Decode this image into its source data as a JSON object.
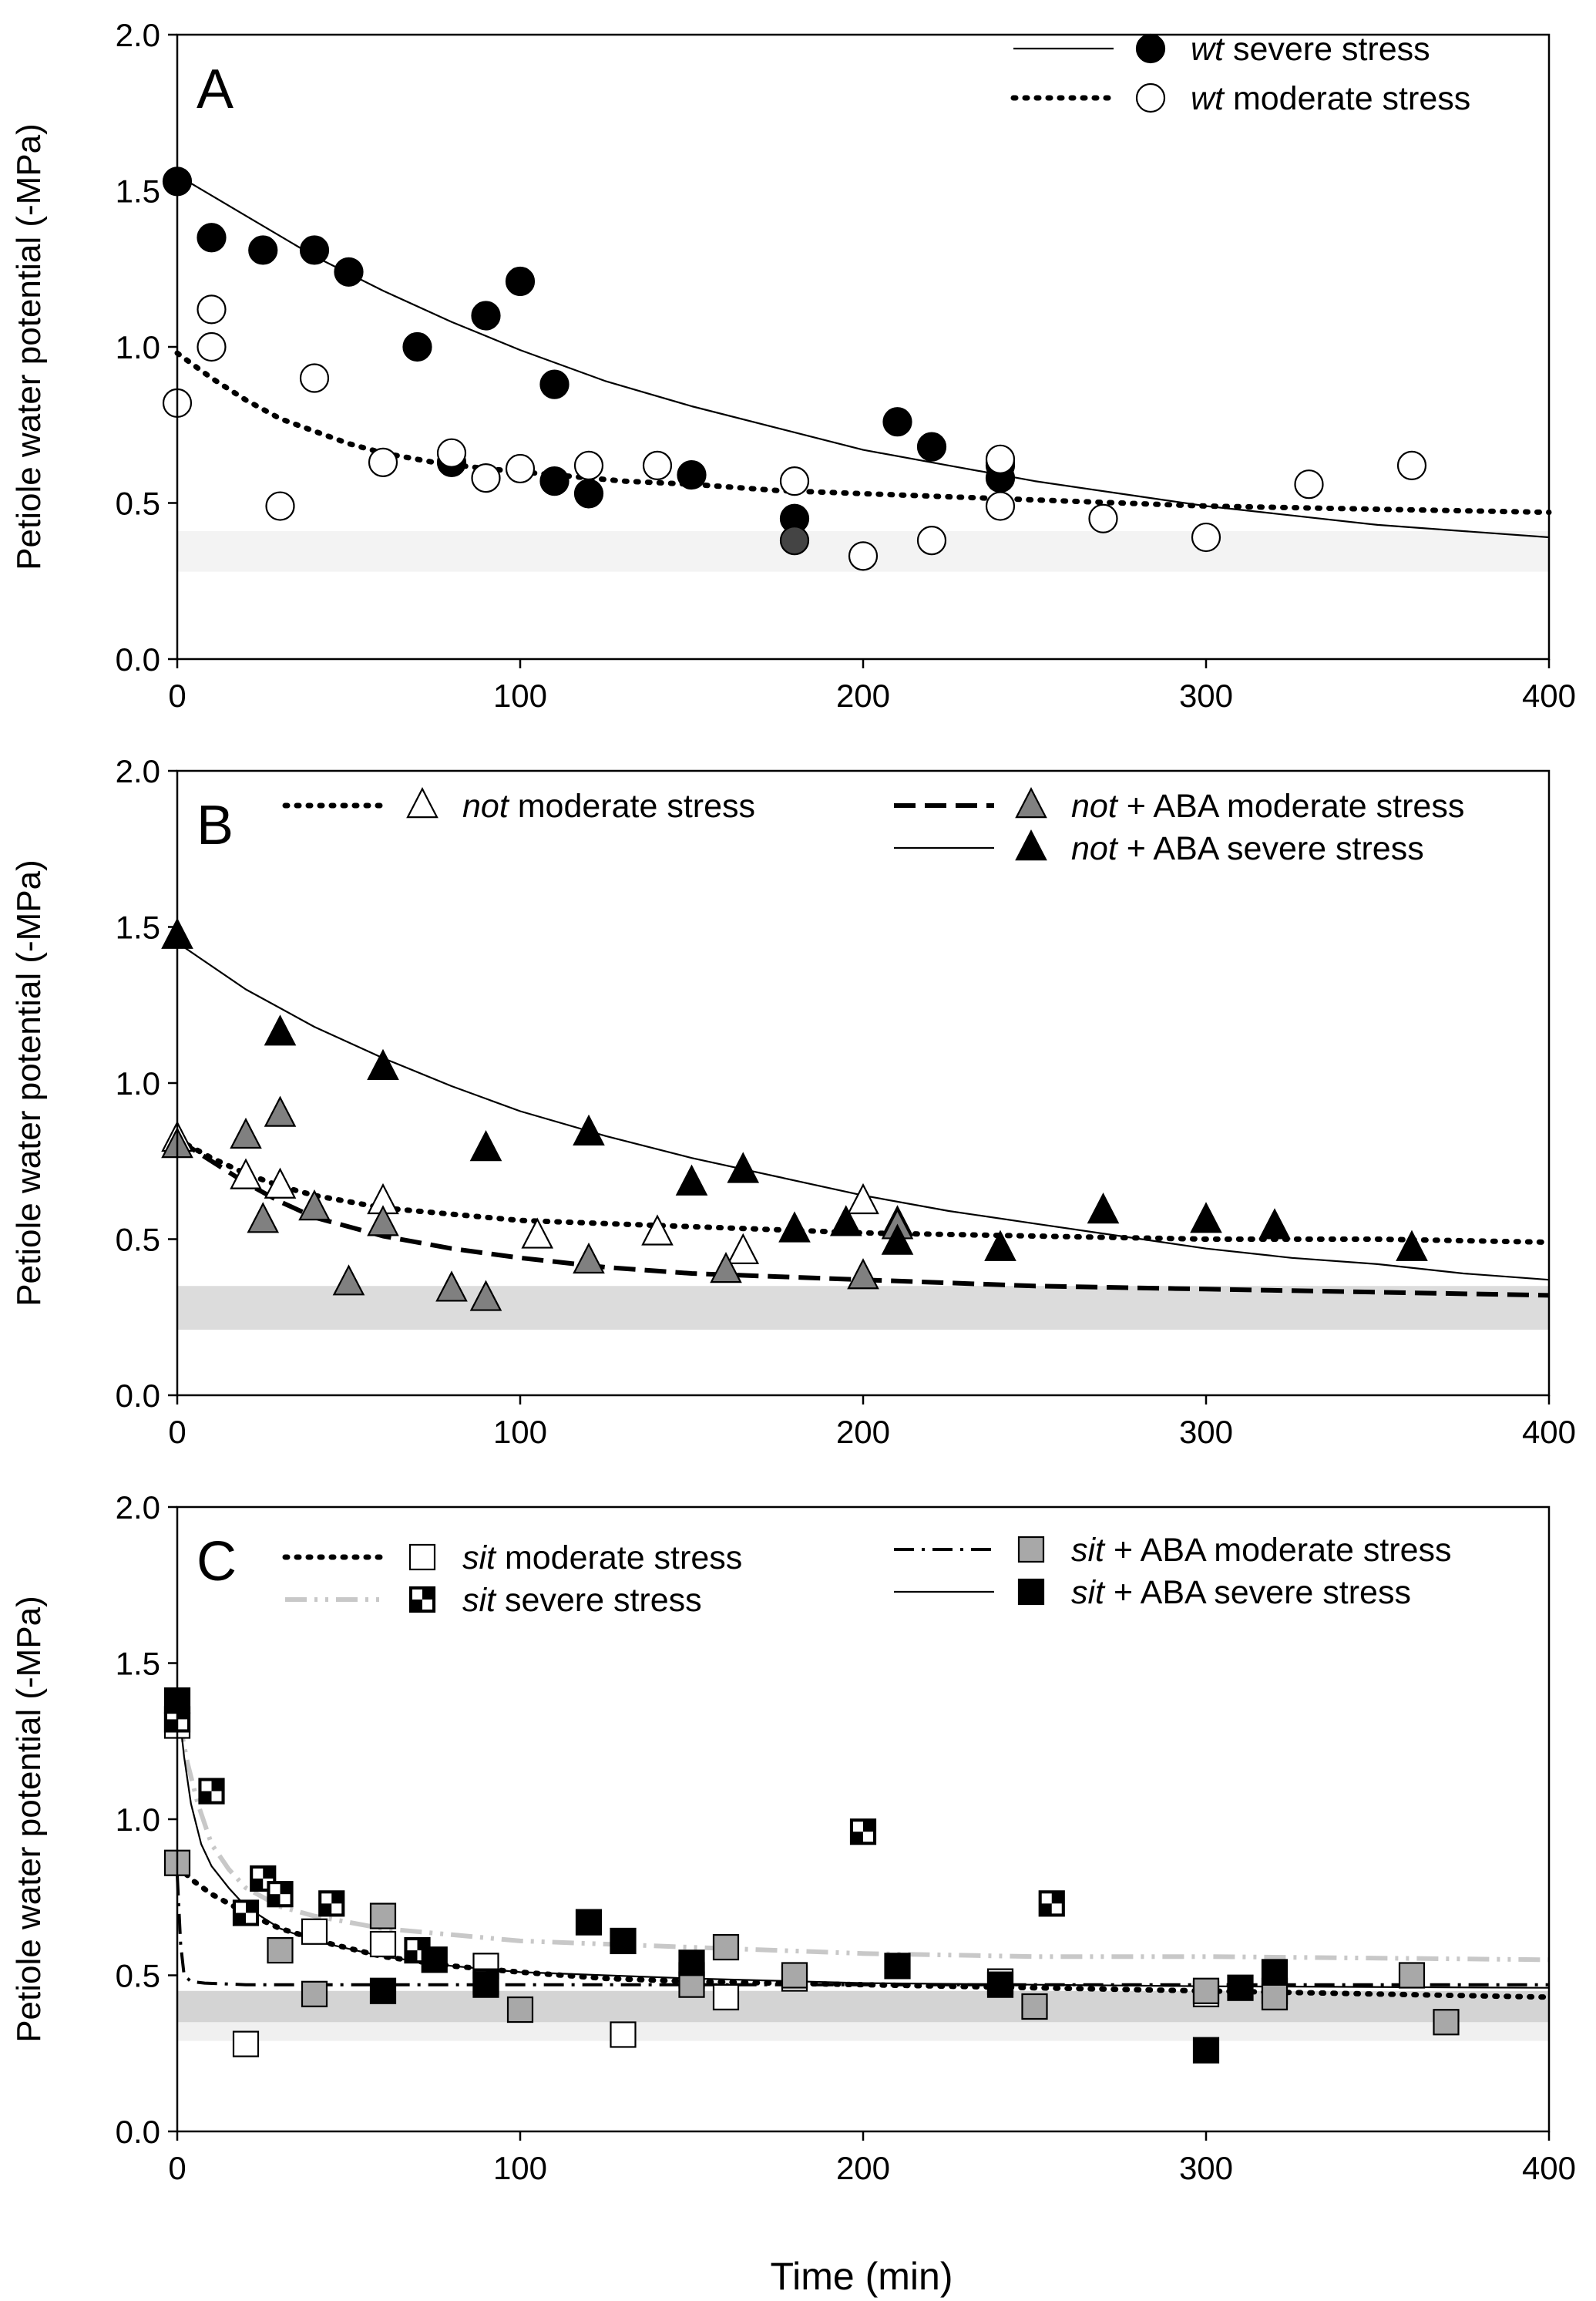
{
  "figure": {
    "xlabel": "Time (min)"
  },
  "chart_data": [
    {
      "type": "scatter",
      "panel": "A",
      "ylabel": "Petiole water potential (-MPa)",
      "xlabel": "",
      "xlim": [
        0,
        400
      ],
      "ylim": [
        0,
        2.0
      ],
      "xticks": [
        "0",
        "100",
        "200",
        "300",
        "400"
      ],
      "yticks": [
        "0.0",
        "0.5",
        "1.0",
        "1.5",
        "2.0"
      ],
      "shaded_band": [
        {
          "y0": 0.28,
          "y1": 0.41,
          "color": "#f3f3f3"
        }
      ],
      "legend_placement": "top-right",
      "series": [
        {
          "key": "wt_sev",
          "name_italic": "wt",
          "name_rest": " severe stress",
          "legend_row": 0,
          "legend_col": 1,
          "marker": "circle",
          "fill": "#000000",
          "stroke": "#000000",
          "x": [
            0,
            10,
            25,
            40,
            50,
            70,
            80,
            90,
            100,
            110,
            110,
            120,
            150,
            180,
            210,
            220,
            240,
            240,
            240
          ],
          "y": [
            1.53,
            1.35,
            1.31,
            1.31,
            1.24,
            1.0,
            0.63,
            1.1,
            1.21,
            0.88,
            0.57,
            0.53,
            0.59,
            0.45,
            0.76,
            0.68,
            0.62,
            0.63,
            0.58
          ],
          "fit": {
            "x": [
              0,
              20,
              40,
              60,
              80,
              100,
              125,
              150,
              175,
              200,
              225,
              250,
              275,
              300,
              325,
              350,
              375,
              400
            ],
            "y": [
              1.55,
              1.42,
              1.29,
              1.18,
              1.08,
              0.99,
              0.89,
              0.81,
              0.74,
              0.67,
              0.62,
              0.57,
              0.53,
              0.49,
              0.46,
              0.43,
              0.41,
              0.39
            ],
            "dash": "solid",
            "color": "#000000"
          }
        },
        {
          "key": "wt_mod",
          "name_italic": "wt",
          "name_rest": " moderate stress",
          "legend_row": 1,
          "legend_col": 1,
          "marker": "circle",
          "fill": "#ffffff",
          "stroke": "#000000",
          "x": [
            0,
            10,
            10,
            30,
            40,
            60,
            80,
            90,
            100,
            120,
            140,
            180,
            200,
            220,
            240,
            240,
            270,
            300,
            330,
            360
          ],
          "y": [
            0.82,
            1.12,
            1.0,
            0.49,
            0.9,
            0.63,
            0.66,
            0.58,
            0.61,
            0.62,
            0.62,
            0.57,
            0.33,
            0.38,
            0.64,
            0.49,
            0.45,
            0.39,
            0.56,
            0.62
          ],
          "fit": {
            "x": [
              0,
              10,
              20,
              30,
              40,
              50,
              60,
              75,
              90,
              110,
              130,
              150,
              175,
              200,
              250,
              300,
              350,
              400
            ],
            "y": [
              0.98,
              0.9,
              0.83,
              0.77,
              0.73,
              0.69,
              0.66,
              0.63,
              0.61,
              0.59,
              0.57,
              0.56,
              0.54,
              0.53,
              0.51,
              0.49,
              0.48,
              0.47
            ],
            "dash": "dot",
            "color": "#000000"
          }
        },
        {
          "key": "wt_sev_grey",
          "name": "",
          "legend": false,
          "marker": "circle",
          "fill": "#444444",
          "stroke": "#000000",
          "x": [
            180
          ],
          "y": [
            0.38
          ]
        }
      ]
    },
    {
      "type": "scatter",
      "panel": "B",
      "ylabel": "Petiole water potential (-MPa)",
      "xlabel": "",
      "xlim": [
        0,
        400
      ],
      "ylim": [
        0,
        2.0
      ],
      "xticks": [
        "0",
        "100",
        "200",
        "300",
        "400"
      ],
      "yticks": [
        "0.0",
        "0.5",
        "1.0",
        "1.5",
        "2.0"
      ],
      "shaded_band": [
        {
          "y0": 0.21,
          "y1": 0.35,
          "color": "#dcdcdc"
        }
      ],
      "legend_placement": "top",
      "series": [
        {
          "key": "not_mod",
          "name_italic": "not",
          "name_rest": " moderate stress",
          "legend_row": 0,
          "legend_col": 0,
          "marker": "triangle",
          "fill": "#ffffff",
          "stroke": "#000000",
          "x": [
            0,
            20,
            30,
            60,
            105,
            140,
            165,
            200,
            210
          ],
          "y": [
            0.82,
            0.7,
            0.67,
            0.62,
            0.51,
            0.52,
            0.46,
            0.62,
            0.55
          ],
          "fit": {
            "x": [
              0,
              10,
              20,
              30,
              40,
              60,
              80,
              100,
              125,
              150,
              175,
              200,
              250,
              300,
              350,
              400
            ],
            "y": [
              0.82,
              0.76,
              0.71,
              0.67,
              0.64,
              0.6,
              0.58,
              0.56,
              0.55,
              0.54,
              0.53,
              0.52,
              0.51,
              0.5,
              0.5,
              0.49
            ],
            "dash": "dot",
            "color": "#000000"
          }
        },
        {
          "key": "not_aba_mod",
          "name_italic": "not",
          "name_rest": " + ABA moderate stress",
          "legend_row": 0,
          "legend_col": 1,
          "marker": "triangle",
          "fill": "#808080",
          "stroke": "#000000",
          "x": [
            0,
            20,
            25,
            30,
            40,
            50,
            60,
            80,
            90,
            120,
            160,
            200,
            210
          ],
          "y": [
            0.8,
            0.83,
            0.56,
            0.9,
            0.6,
            0.36,
            0.55,
            0.34,
            0.31,
            0.43,
            0.4,
            0.38,
            0.54
          ],
          "fit": {
            "x": [
              0,
              10,
              20,
              30,
              40,
              60,
              80,
              100,
              125,
              150,
              175,
              200,
              250,
              300,
              350,
              400
            ],
            "y": [
              0.82,
              0.75,
              0.68,
              0.62,
              0.57,
              0.51,
              0.47,
              0.44,
              0.41,
              0.39,
              0.38,
              0.37,
              0.35,
              0.34,
              0.33,
              0.32
            ],
            "dash": "dash",
            "color": "#000000"
          }
        },
        {
          "key": "not_aba_sev",
          "name_italic": "not",
          "name_rest": " + ABA severe stress",
          "legend_row": 1,
          "legend_col": 1,
          "marker": "triangle",
          "fill": "#000000",
          "stroke": "#000000",
          "x": [
            0,
            30,
            60,
            90,
            120,
            150,
            165,
            180,
            195,
            210,
            240,
            270,
            300,
            320,
            360
          ],
          "y": [
            1.47,
            1.16,
            1.05,
            0.79,
            0.84,
            0.68,
            0.72,
            0.53,
            0.55,
            0.49,
            0.47,
            0.59,
            0.56,
            0.54,
            0.47
          ],
          "fit": {
            "x": [
              0,
              20,
              40,
              60,
              80,
              100,
              125,
              150,
              175,
              200,
              225,
              250,
              275,
              300,
              325,
              350,
              375,
              400
            ],
            "y": [
              1.45,
              1.3,
              1.18,
              1.08,
              0.99,
              0.91,
              0.83,
              0.76,
              0.7,
              0.64,
              0.59,
              0.55,
              0.51,
              0.47,
              0.44,
              0.42,
              0.39,
              0.37
            ],
            "dash": "solid",
            "color": "#000000"
          }
        }
      ]
    },
    {
      "type": "scatter",
      "panel": "C",
      "ylabel": "Petiole water potential (-MPa)",
      "xlabel": "Time (min)",
      "xlim": [
        0,
        400
      ],
      "ylim": [
        0,
        2.0
      ],
      "xticks": [
        "0",
        "100",
        "200",
        "300",
        "400"
      ],
      "yticks": [
        "0.0",
        "0.5",
        "1.0",
        "1.5",
        "2.0"
      ],
      "shaded_band": [
        {
          "y0": 0.29,
          "y1": 0.42,
          "color": "#f0f0f0"
        },
        {
          "y0": 0.35,
          "y1": 0.45,
          "color": "#d4d4d4"
        }
      ],
      "legend_placement": "top",
      "series": [
        {
          "key": "sit_mod",
          "name_italic": "sit",
          "name_rest": " moderate stress",
          "legend_row": 0,
          "legend_col": 0,
          "marker": "square",
          "fill": "#ffffff",
          "stroke": "#000000",
          "x": [
            0,
            20,
            40,
            60,
            90,
            130,
            160,
            180,
            240,
            300,
            320
          ],
          "y": [
            1.3,
            0.28,
            0.64,
            0.6,
            0.53,
            0.31,
            0.43,
            0.49,
            0.48,
            0.44,
            0.45
          ],
          "fit": {
            "x": [
              0,
              5,
              10,
              20,
              30,
              45,
              60,
              80,
              100,
              125,
              150,
              200,
              250,
              300,
              350,
              400
            ],
            "y": [
              0.85,
              0.8,
              0.76,
              0.7,
              0.65,
              0.6,
              0.56,
              0.53,
              0.51,
              0.49,
              0.48,
              0.47,
              0.46,
              0.45,
              0.44,
              0.43
            ],
            "dash": "dot",
            "color": "#000000"
          }
        },
        {
          "key": "sit_sev",
          "name_italic": "sit",
          "name_rest": " severe stress",
          "legend_row": 1,
          "legend_col": 0,
          "marker": "checker",
          "fill": "#000000",
          "stroke": "#000000",
          "x": [
            0,
            10,
            20,
            25,
            30,
            45,
            70,
            90,
            150,
            200,
            255
          ],
          "y": [
            1.32,
            1.09,
            0.7,
            0.81,
            0.76,
            0.73,
            0.58,
            0.48,
            0.5,
            0.96,
            0.73
          ],
          "fit": {
            "x": [
              0,
              3,
              6,
              10,
              15,
              20,
              30,
              40,
              60,
              80,
              100,
              150,
              200,
              250,
              300,
              350,
              400
            ],
            "y": [
              1.35,
              1.18,
              1.05,
              0.92,
              0.84,
              0.78,
              0.72,
              0.69,
              0.65,
              0.63,
              0.61,
              0.59,
              0.57,
              0.56,
              0.56,
              0.555,
              0.55
            ],
            "dash": "dashdotdot",
            "color": "#c8c8c8"
          }
        },
        {
          "key": "sit_aba_mod",
          "name_italic": "sit",
          "name_rest": " + ABA moderate stress",
          "legend_row": 0,
          "legend_col": 1,
          "marker": "square",
          "fill": "#a8a8a8",
          "stroke": "#000000",
          "x": [
            0,
            30,
            40,
            60,
            100,
            150,
            160,
            180,
            250,
            300,
            320,
            360,
            370
          ],
          "y": [
            0.86,
            0.58,
            0.44,
            0.69,
            0.39,
            0.47,
            0.59,
            0.5,
            0.4,
            0.45,
            0.43,
            0.5,
            0.35
          ],
          "fit": {
            "x": [
              0,
              1,
              2,
              4,
              8,
              20,
              50,
              100,
              200,
              300,
              400
            ],
            "y": [
              0.82,
              0.6,
              0.5,
              0.48,
              0.475,
              0.47,
              0.47,
              0.47,
              0.47,
              0.47,
              0.47
            ],
            "dash": "dashdot",
            "color": "#000000"
          }
        },
        {
          "key": "sit_aba_sev",
          "name_italic": "sit",
          "name_rest": " + ABA severe stress",
          "legend_row": 1,
          "legend_col": 1,
          "marker": "square",
          "fill": "#000000",
          "stroke": "#000000",
          "x": [
            0,
            60,
            75,
            90,
            120,
            130,
            150,
            210,
            240,
            300,
            310,
            320
          ],
          "y": [
            1.38,
            0.45,
            0.55,
            0.47,
            0.67,
            0.61,
            0.54,
            0.53,
            0.47,
            0.26,
            0.46,
            0.51
          ],
          "fit": {
            "x": [
              0,
              2,
              4,
              7,
              10,
              15,
              20,
              30,
              40,
              60,
              80,
              100,
              150,
              200,
              250,
              300,
              400
            ],
            "y": [
              1.4,
              1.2,
              1.05,
              0.92,
              0.85,
              0.78,
              0.72,
              0.65,
              0.61,
              0.56,
              0.53,
              0.51,
              0.49,
              0.475,
              0.47,
              0.465,
              0.46
            ],
            "dash": "solid",
            "color": "#000000"
          }
        }
      ]
    }
  ]
}
